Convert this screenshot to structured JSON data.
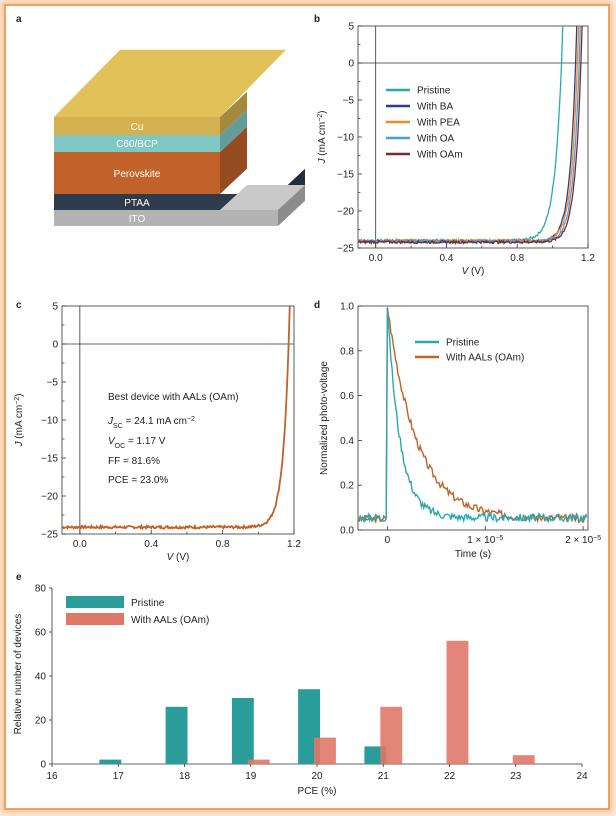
{
  "panels": {
    "a": "a",
    "b": "b",
    "c": "c",
    "d": "d",
    "e": "e"
  },
  "stack_layers": [
    {
      "label": "Cu",
      "color": "#d4b04e"
    },
    {
      "label": "C60/BCP",
      "color": "#7fc8c4"
    },
    {
      "label": "Perovskite",
      "color": "#c0622a"
    },
    {
      "label": "PTAA",
      "color": "#2e3b4c"
    },
    {
      "label": "ITO",
      "color": "#b3b3b3"
    }
  ],
  "chart_data": [
    {
      "id": "b",
      "type": "line",
      "xlabel": "V (V)",
      "ylabel": "J (mA cm−2)",
      "xlim": [
        -0.1,
        1.2
      ],
      "ylim": [
        -25,
        5
      ],
      "xticks": [
        0.0,
        0.4,
        0.8,
        1.2
      ],
      "xtick_labels": [
        "0.0",
        "0.4",
        "0.8",
        "1.2"
      ],
      "yticks": [
        5,
        0,
        -5,
        -10,
        -15,
        -20,
        -25
      ],
      "ytick_labels": [
        "5",
        "0",
        "−5",
        "−10",
        "−15",
        "−20",
        "−25"
      ],
      "legend_position": "center-right",
      "series": [
        {
          "name": "Pristine",
          "color": "#2aa8b0",
          "jsc": 24.0,
          "voc": 1.05
        },
        {
          "name": "With BA",
          "color": "#2b3a8a",
          "jsc": 24.1,
          "voc": 1.13
        },
        {
          "name": "With PEA",
          "color": "#f08a24",
          "jsc": 24.0,
          "voc": 1.14
        },
        {
          "name": "With OA",
          "color": "#4a9fd8",
          "jsc": 24.1,
          "voc": 1.15
        },
        {
          "name": "With OAm",
          "color": "#7a2a2a",
          "jsc": 24.2,
          "voc": 1.16
        }
      ]
    },
    {
      "id": "c",
      "type": "line",
      "xlabel": "V (V)",
      "ylabel": "J (mA cm−2)",
      "xlim": [
        -0.1,
        1.2
      ],
      "ylim": [
        -25,
        5
      ],
      "xticks": [
        0.0,
        0.4,
        0.8,
        1.2
      ],
      "xtick_labels": [
        "0.0",
        "0.4",
        "0.8",
        "1.2"
      ],
      "yticks": [
        5,
        0,
        -5,
        -10,
        -15,
        -20,
        -25
      ],
      "ytick_labels": [
        "5",
        "0",
        "−5",
        "−10",
        "−15",
        "−20",
        "−25"
      ],
      "series": [
        {
          "name": "",
          "color": "#c0622a",
          "jsc": 24.1,
          "voc": 1.17
        }
      ],
      "annotation": {
        "title": "Best device with AALs (OAm)",
        "jsc": {
          "sym": "J",
          "sub": "SC",
          "text": " = 24.1 mA cm",
          "sup": "−2"
        },
        "voc": {
          "sym": "V",
          "sub": "OC",
          "text": " = 1.17 V"
        },
        "ff": "FF = 81.6%",
        "pce": "PCE = 23.0%"
      }
    },
    {
      "id": "d",
      "type": "line",
      "xlabel": "Time (s)",
      "ylabel": "Normalized photo-voltage",
      "xlim": [
        -3e-06,
        2.05e-05
      ],
      "ylim": [
        0,
        1.0
      ],
      "xticks": [
        0,
        1e-05,
        2e-05
      ],
      "xtick_labels": [
        "0",
        "1 × 10",
        "2 × 10"
      ],
      "xtick_sup": [
        "",
        "−5",
        "−5"
      ],
      "yticks": [
        0.0,
        0.2,
        0.4,
        0.6,
        0.8,
        1.0
      ],
      "ytick_labels": [
        "0.0",
        "0.2",
        "0.4",
        "0.6",
        "0.8",
        "1.0"
      ],
      "legend_position": "top-right",
      "series": [
        {
          "name": "Pristine",
          "color": "#2aa8b0",
          "tau_s": 1.3e-06,
          "baseline": 0.055
        },
        {
          "name": "With AALs (OAm)",
          "color": "#c0622a",
          "tau_s": 3e-06,
          "baseline": 0.05
        }
      ]
    },
    {
      "id": "e",
      "type": "bar",
      "xlabel": "PCE (%)",
      "ylabel": "Relative number of devices",
      "xlim": [
        16,
        24
      ],
      "ylim": [
        0,
        80
      ],
      "xticks": [
        16,
        17,
        18,
        19,
        20,
        21,
        22,
        23,
        24
      ],
      "xtick_labels": [
        "16",
        "17",
        "18",
        "19",
        "20",
        "21",
        "22",
        "23",
        "24"
      ],
      "yticks": [
        0,
        20,
        40,
        60,
        80
      ],
      "ytick_labels": [
        "0",
        "20",
        "40",
        "60",
        "80"
      ],
      "legend_position": "top-left",
      "series": [
        {
          "name": "Pristine",
          "color": "#2a9d9a",
          "x": [
            17,
            18,
            19,
            20,
            21
          ],
          "values": [
            2,
            26,
            30,
            34,
            8
          ]
        },
        {
          "name": "With AALs (OAm)",
          "color": "#e07868",
          "x": [
            19,
            20,
            21,
            22,
            23
          ],
          "values": [
            2,
            12,
            26,
            56,
            4
          ]
        }
      ]
    }
  ]
}
